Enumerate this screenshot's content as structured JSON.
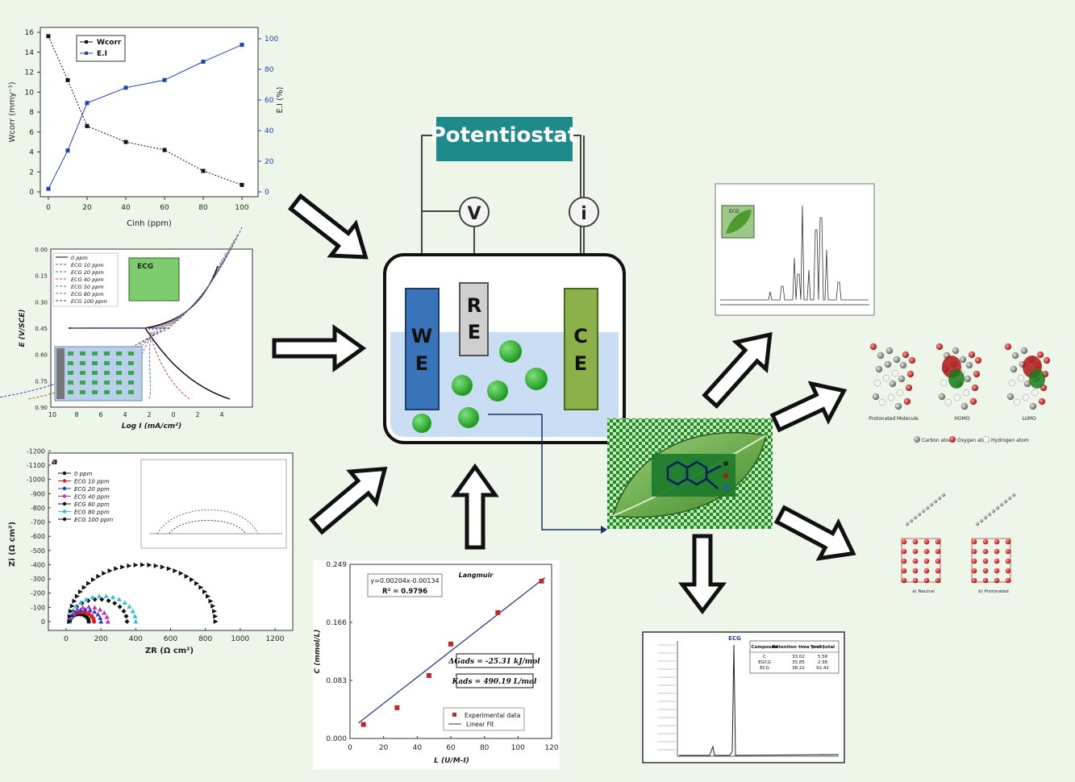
{
  "potentiostat": {
    "label": "Potentiostat",
    "voltmeter": "V",
    "ammeter": "i"
  },
  "cell": {
    "we": [
      "W",
      "E"
    ],
    "re": [
      "R",
      "E"
    ],
    "ce": [
      "C",
      "E"
    ]
  },
  "chart_weight_loss": {
    "type": "line",
    "x": [
      0,
      10,
      20,
      40,
      60,
      80,
      100
    ],
    "series": [
      {
        "name": "Wcorr",
        "values": [
          15.6,
          11.2,
          6.6,
          5.0,
          4.2,
          2.1,
          0.7
        ],
        "color": "#111111"
      },
      {
        "name": "E.I",
        "values": [
          2,
          27,
          58,
          68,
          73,
          85,
          96
        ],
        "color": "#1f3fbf"
      }
    ],
    "xlabel": "Cinh (ppm)",
    "ylabel": "Wcorr (mmy⁻¹)",
    "y2label": "E.I (%)",
    "xticks": [
      "0",
      "20",
      "40",
      "60",
      "80",
      "100"
    ],
    "yticks": [
      "0",
      "2",
      "4",
      "6",
      "8",
      "10",
      "12",
      "14",
      "16"
    ],
    "y2ticks": [
      "0",
      "20",
      "40",
      "60",
      "80",
      "100"
    ],
    "legend": [
      "Wcorr",
      "E.I"
    ]
  },
  "chart_tafel": {
    "type": "line",
    "legend": [
      "0 ppm",
      "ECG 10 ppm",
      "ECG 20 ppm",
      "ECG 40 ppm",
      "ECG 50 ppm",
      "ECG 80 ppm",
      "ECG 100 ppm"
    ],
    "colors": [
      "#000000",
      "#d23b3b",
      "#3b7bd2",
      "#c03ac0",
      "#2a9a2a",
      "#8a6a2a",
      "#3a3ad2"
    ],
    "xlabel": "Log I (mA/cm²)",
    "ylabel": "E (V/SCE)",
    "yticks": [
      "0.00",
      "0.15",
      "0.30",
      "0.45",
      "0.60",
      "0.75",
      "0.90"
    ],
    "xticks": [
      "10",
      "8",
      "6",
      "4",
      "2",
      "0",
      "2",
      "4"
    ],
    "inset": "ECG"
  },
  "chart_nyquist": {
    "type": "scatter",
    "panel": "a",
    "legend": [
      "0 ppm",
      "ECG 10 ppm",
      "ECG 20 ppm",
      "ECG 40 ppm",
      "ECG 60 ppm",
      "ECG 80 ppm",
      "ECG 100 ppm"
    ],
    "colors": [
      "#111111",
      "#e01f1f",
      "#2a3ad2",
      "#c030c0",
      "#111111",
      "#2ac0d8",
      "#111111"
    ],
    "diameters": [
      110,
      140,
      180,
      220,
      330,
      380,
      840
    ],
    "xlabel": "ZR (Ω cm²)",
    "ylabel": "Zi (Ω cm²)",
    "xticks": [
      "0",
      "200",
      "400",
      "600",
      "800",
      "1000",
      "1200"
    ],
    "yticks": [
      "0",
      "-100",
      "-200",
      "-300",
      "-400",
      "-500",
      "-600",
      "-700",
      "-800",
      "-900",
      "-1000",
      "-1100",
      "-1200"
    ]
  },
  "chart_langmuir": {
    "type": "scatter",
    "title": "Langmuir",
    "x": [
      8,
      28,
      47,
      60,
      88,
      114
    ],
    "y": [
      0.02,
      0.044,
      0.09,
      0.135,
      0.18,
      0.225
    ],
    "fit": {
      "slope": 0.00204,
      "intercept": -0.00134
    },
    "xlim": [
      0,
      120
    ],
    "ylim": [
      0,
      0.249
    ],
    "xticks": [
      "0",
      "20",
      "40",
      "60",
      "80",
      "100",
      "120"
    ],
    "yticks": [
      "0.000",
      "0.083",
      "0.166",
      "0.249"
    ],
    "equation": "y=0.00204x-0.00134",
    "r2": "R² = 0.9796",
    "dg": "ΔGads = -25.31 kJ/mol",
    "k": "Kads = 490.19 L/mol",
    "xlabel": "L (U/M-I)",
    "ylabel": "C (mmol/L)",
    "legend": [
      "Experimental data",
      "Linear Fit"
    ]
  },
  "dft_panel": {
    "labels": [
      "Protonated Molecule",
      "HOMO",
      "LUMO"
    ],
    "legend": [
      "Carbon atom",
      "Oxygen atom",
      "Hydrogen atom"
    ]
  },
  "md_panel": {
    "labels": [
      "a) Neutral",
      "b) Protonated"
    ]
  },
  "hplc_panel": {
    "peak": "ECG",
    "headers": [
      "Compound",
      "Retention time (min)",
      "% of total"
    ],
    "rows": [
      [
        "C",
        "33.02",
        "5.58"
      ],
      [
        "EGCG",
        "35.85",
        "2.98"
      ],
      [
        "ECG",
        "38.22",
        "92.42"
      ]
    ]
  },
  "nmr_panel": {
    "inset": "ECG"
  },
  "colors": {
    "background": "#eef6e9",
    "potentiostat": "#1e8a8a",
    "electrolyte": "#c9def3",
    "we": "#3a74b8",
    "re": "#cfcfcf",
    "ce": "#8cb04a",
    "ball": "#2fb52f"
  }
}
